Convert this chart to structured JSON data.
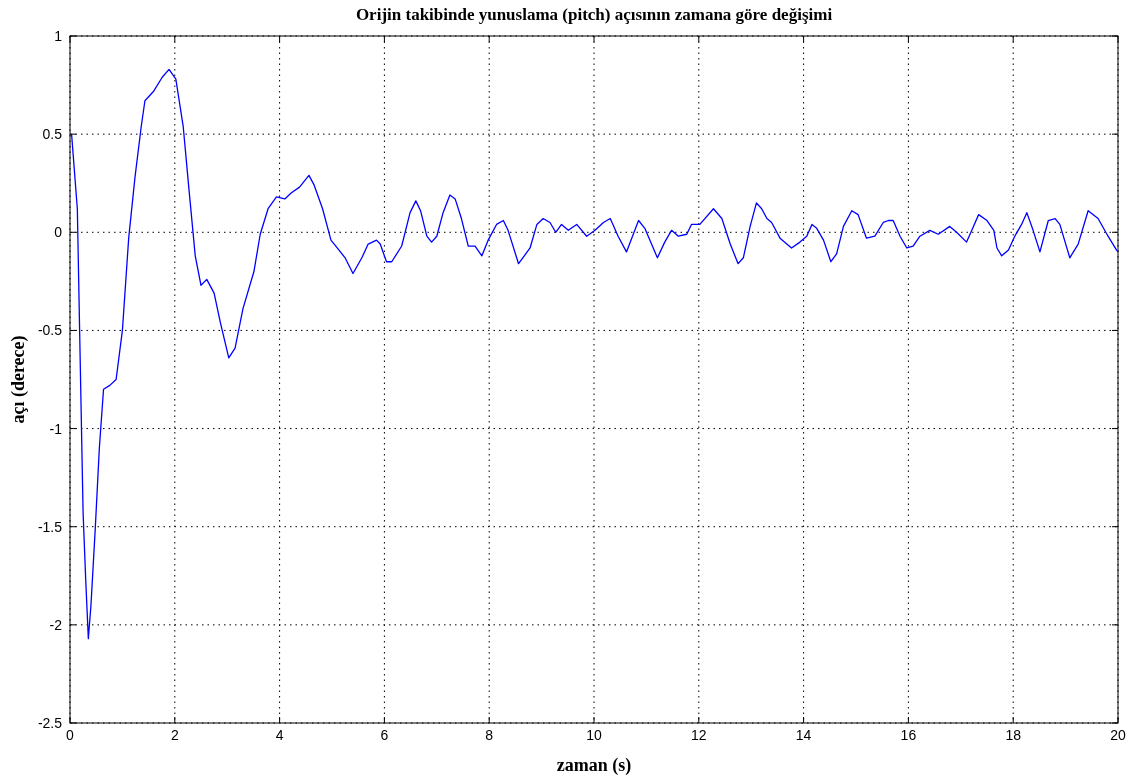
{
  "chart_data": {
    "type": "line",
    "title": "Orijin takibinde yunuslama (pitch) açısının zamana göre değişimi",
    "xlabel": "zaman (s)",
    "ylabel": "açı (derece)",
    "xlim": [
      0,
      20
    ],
    "ylim": [
      -2.5,
      1
    ],
    "xticks": [
      0,
      2,
      4,
      6,
      8,
      10,
      12,
      14,
      16,
      18,
      20
    ],
    "yticks": [
      -2.5,
      -2,
      -1.5,
      -1,
      -0.5,
      0,
      0.5,
      1
    ],
    "grid": true,
    "line_style": "solid",
    "marker": "none",
    "series": [
      {
        "color": "#0000ff",
        "x": [
          0.03,
          0.14,
          0.19,
          0.25,
          0.3,
          0.35,
          0.4,
          0.48,
          0.56,
          0.64,
          0.76,
          0.88,
          1.0,
          1.12,
          1.24,
          1.36,
          1.43,
          1.6,
          1.76,
          1.89,
          2.02,
          2.16,
          2.27,
          2.39,
          2.5,
          2.61,
          2.75,
          2.87,
          3.03,
          3.15,
          3.3,
          3.51,
          3.63,
          3.78,
          3.94,
          4.1,
          4.22,
          4.38,
          4.56,
          4.66,
          4.82,
          4.98,
          5.13,
          5.25,
          5.4,
          5.57,
          5.69,
          5.85,
          5.92,
          6.04,
          6.14,
          6.33,
          6.49,
          6.6,
          6.69,
          6.81,
          6.9,
          7.0,
          7.12,
          7.25,
          7.35,
          7.47,
          7.6,
          7.73,
          7.86,
          7.98,
          8.14,
          8.27,
          8.36,
          8.56,
          8.78,
          8.91,
          9.03,
          9.16,
          9.27,
          9.38,
          9.51,
          9.67,
          9.86,
          10.02,
          10.18,
          10.31,
          10.46,
          10.62,
          10.85,
          10.97,
          11.21,
          11.35,
          11.48,
          11.61,
          11.77,
          11.86,
          12.02,
          12.28,
          12.44,
          12.6,
          12.75,
          12.85,
          12.98,
          13.1,
          13.2,
          13.3,
          13.39,
          13.55,
          13.77,
          13.93,
          14.06,
          14.16,
          14.25,
          14.38,
          14.52,
          14.63,
          14.76,
          14.92,
          15.04,
          15.2,
          15.36,
          15.52,
          15.62,
          15.71,
          15.84,
          15.97,
          16.09,
          16.22,
          16.41,
          16.57,
          16.79,
          16.92,
          17.11,
          17.21,
          17.34,
          17.5,
          17.63,
          17.69,
          17.78,
          17.91,
          18.03,
          18.16,
          18.26,
          18.38,
          18.51,
          18.67,
          18.8,
          18.89,
          19.08,
          19.24,
          19.43,
          19.62,
          19.81,
          19.97,
          20
        ],
        "values": [
          0.5,
          0.12,
          -0.59,
          -1.43,
          -1.77,
          -2.07,
          -1.9,
          -1.52,
          -1.1,
          -0.8,
          -0.78,
          -0.75,
          -0.5,
          -0.03,
          0.28,
          0.54,
          0.67,
          0.72,
          0.79,
          0.83,
          0.78,
          0.54,
          0.22,
          -0.12,
          -0.27,
          -0.24,
          -0.31,
          -0.46,
          -0.64,
          -0.59,
          -0.39,
          -0.2,
          -0.01,
          0.12,
          0.18,
          0.17,
          0.2,
          0.23,
          0.29,
          0.24,
          0.12,
          -0.04,
          -0.09,
          -0.13,
          -0.21,
          -0.13,
          -0.06,
          -0.04,
          -0.06,
          -0.15,
          -0.15,
          -0.07,
          0.1,
          0.16,
          0.11,
          -0.02,
          -0.05,
          -0.02,
          0.1,
          0.19,
          0.17,
          0.07,
          -0.07,
          -0.07,
          -0.12,
          -0.04,
          0.04,
          0.06,
          0.01,
          -0.16,
          -0.08,
          0.04,
          0.07,
          0.05,
          0.0,
          0.04,
          0.01,
          0.04,
          -0.02,
          0.01,
          0.05,
          0.07,
          -0.02,
          -0.1,
          0.06,
          0.02,
          -0.13,
          -0.05,
          0.01,
          -0.02,
          -0.01,
          0.04,
          0.04,
          0.12,
          0.07,
          -0.06,
          -0.16,
          -0.13,
          0.03,
          0.15,
          0.12,
          0.07,
          0.05,
          -0.03,
          -0.08,
          -0.05,
          -0.02,
          0.04,
          0.02,
          -0.04,
          -0.15,
          -0.11,
          0.03,
          0.11,
          0.09,
          -0.03,
          -0.02,
          0.05,
          0.06,
          0.06,
          -0.02,
          -0.08,
          -0.07,
          -0.02,
          0.01,
          -0.01,
          0.03,
          0.0,
          -0.05,
          0.01,
          0.09,
          0.06,
          0.01,
          -0.08,
          -0.12,
          -0.09,
          -0.02,
          0.04,
          0.1,
          0.01,
          -0.1,
          0.06,
          0.07,
          0.04,
          -0.13,
          -0.06,
          0.11,
          0.07,
          -0.02,
          -0.09,
          -0.1
        ]
      }
    ]
  }
}
